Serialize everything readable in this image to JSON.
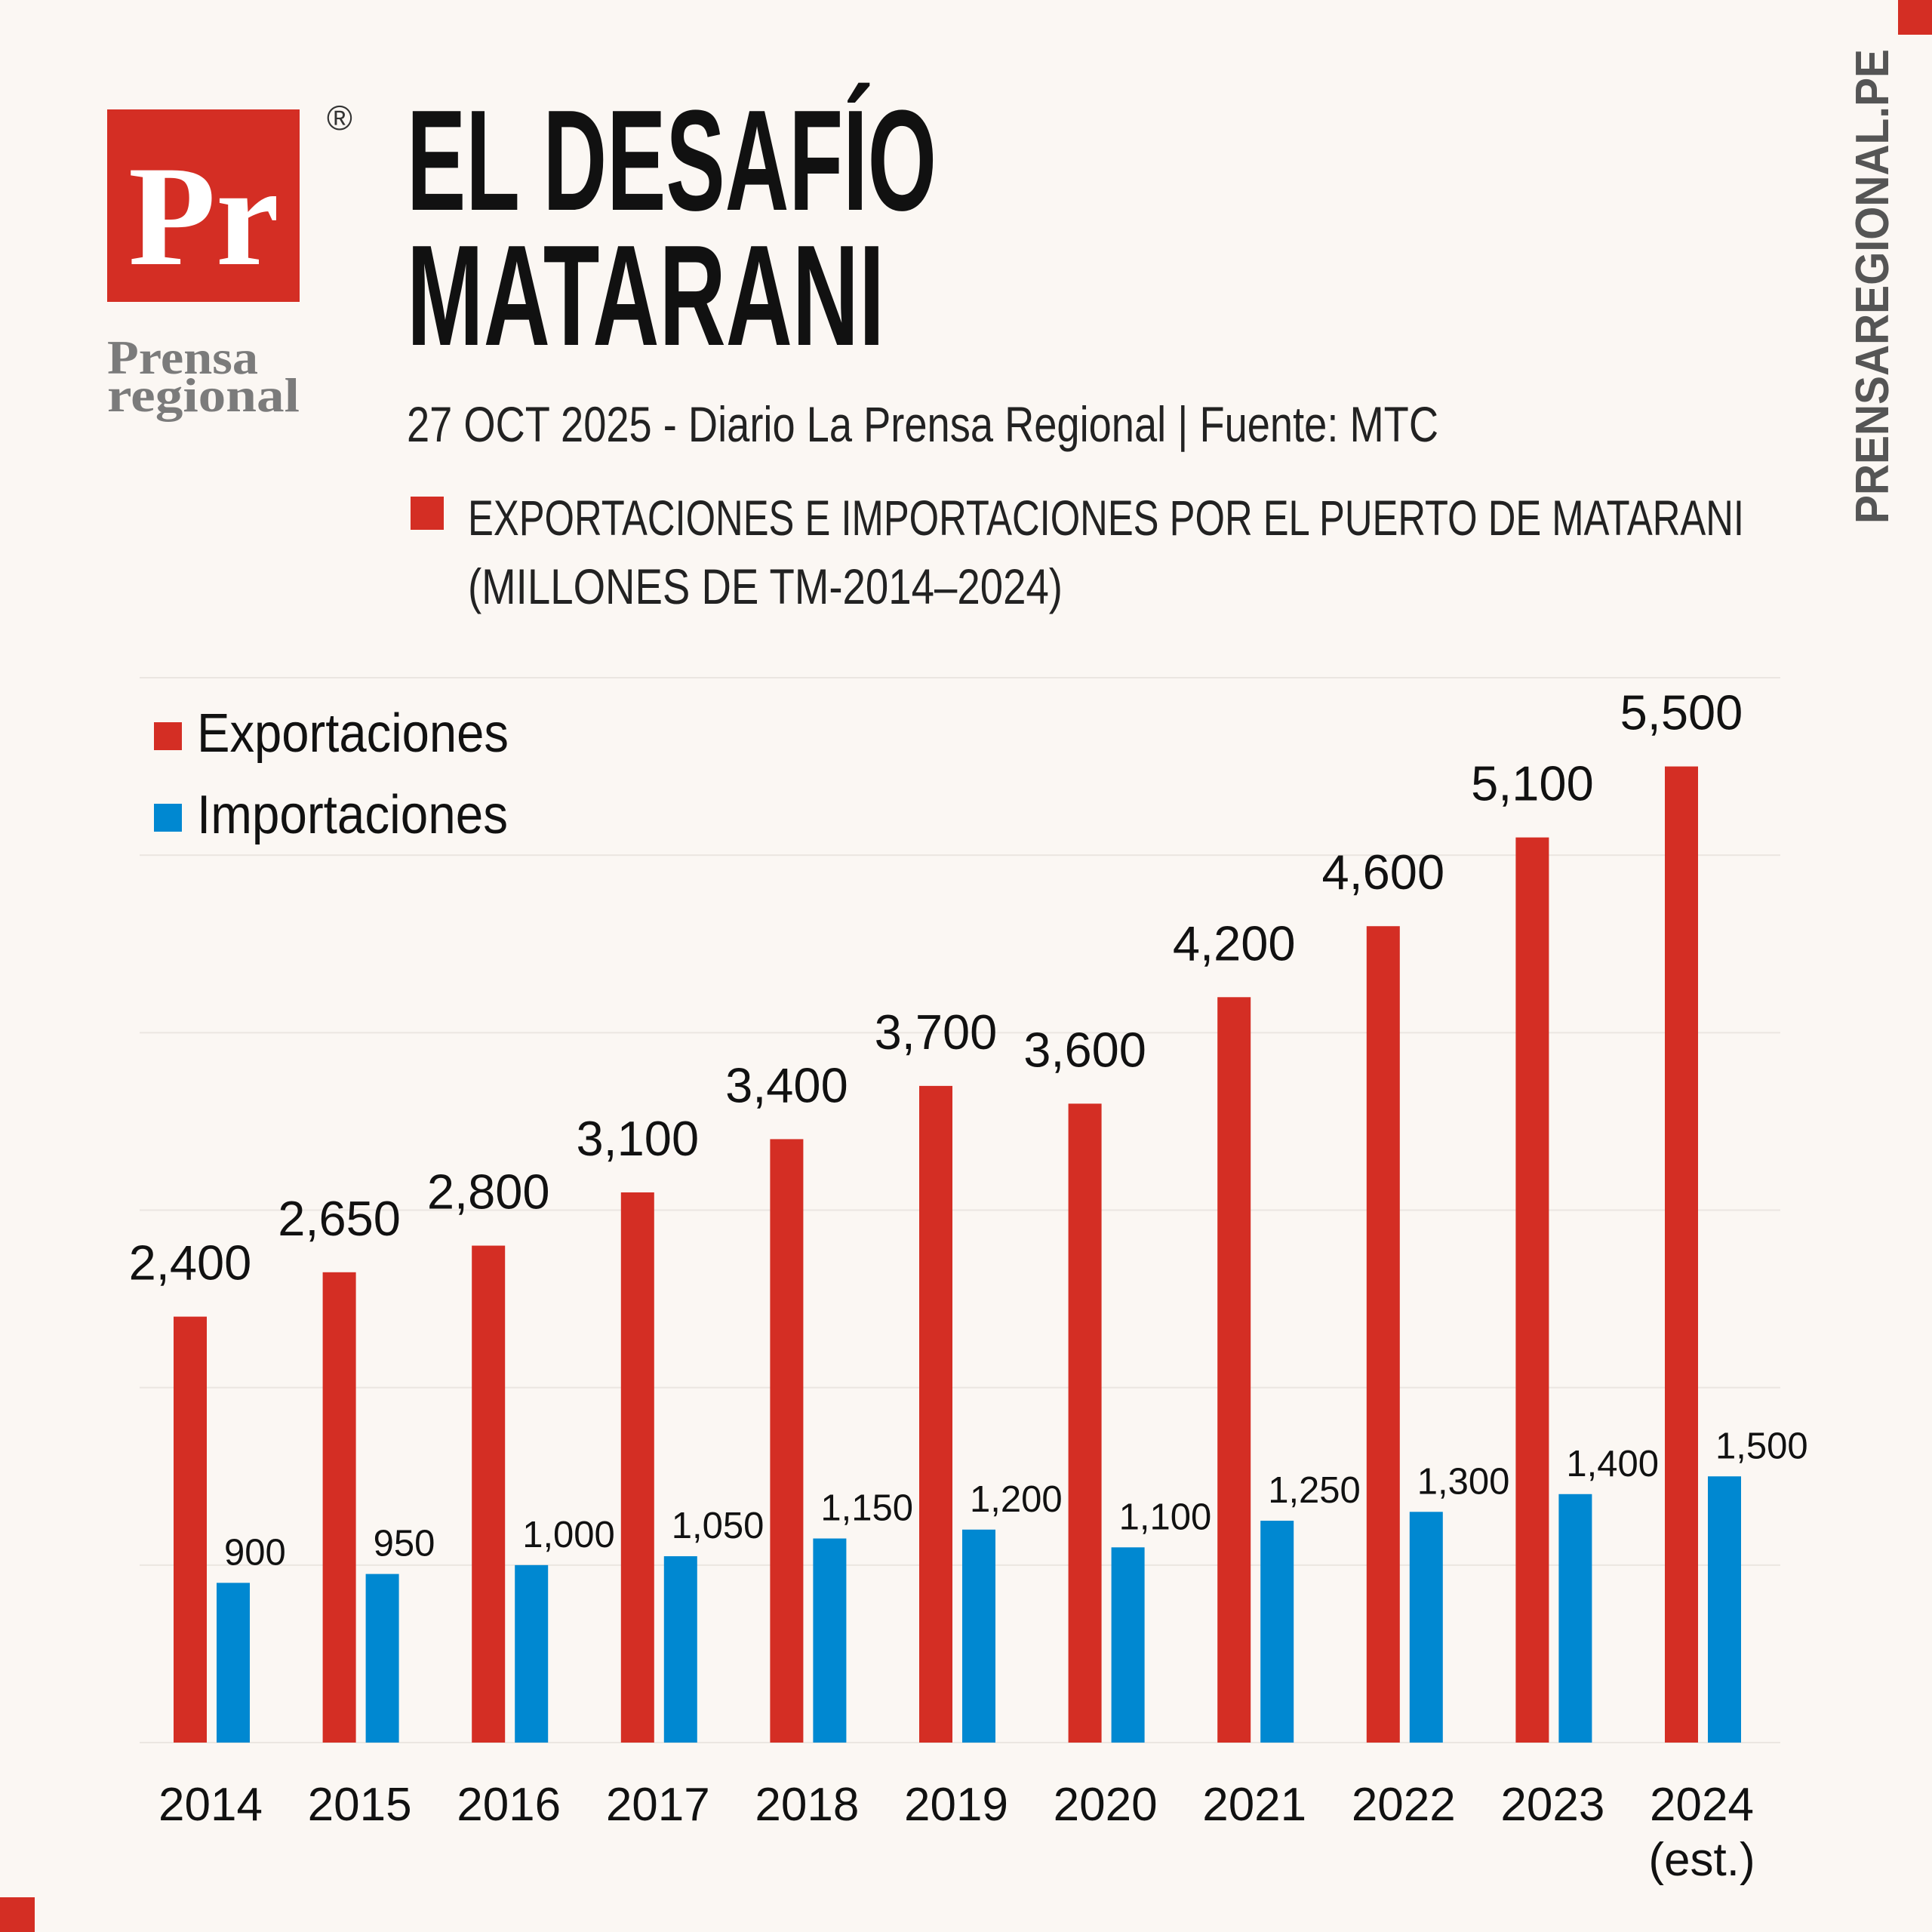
{
  "logo": {
    "mark": "Pr",
    "registered": "®",
    "name_lines": [
      "Prensa",
      "regional"
    ]
  },
  "website": "PRENSAREGIONAL.PE",
  "chart_data": {
    "type": "bar",
    "title_lines": [
      "EL DESAFÍO",
      "MATARANI"
    ],
    "subtitle": "27 OCT 2025 - Diario La Prensa Regional | Fuente: MTC",
    "note_lines": [
      "EXPORTACIONES E IMPORTACIONES POR EL PUERTO DE MATARANI",
      "(MILLONES DE TM-2014–2024)"
    ],
    "note_color": "#d42e24",
    "categories": [
      "2014",
      "2015",
      "2016",
      "2017",
      "2018",
      "2019",
      "2020",
      "2021",
      "2022",
      "2023",
      "2024 (est.)"
    ],
    "series": [
      {
        "name": "Exportaciones",
        "color": "#d42e24",
        "values": [
          2400,
          2650,
          2800,
          3100,
          3400,
          3700,
          3600,
          4200,
          4600,
          5100,
          5500
        ],
        "value_labels": [
          "2,400",
          "2,650",
          "2,800",
          "3,100",
          "3,400",
          "3,700",
          "3,600",
          "4,200",
          "4,600",
          "5,100",
          "5,500"
        ]
      },
      {
        "name": "Importaciones",
        "color": "#0088d1",
        "values": [
          900,
          950,
          1000,
          1050,
          1150,
          1200,
          1100,
          1250,
          1300,
          1400,
          1500
        ],
        "value_labels": [
          "900",
          "950",
          "1,000",
          "1,050",
          "1,150",
          "1,200",
          "1,100",
          "1,250",
          "1,300",
          "1,400",
          "1,500"
        ]
      }
    ],
    "ylim": [
      0,
      6000
    ],
    "yticks": [
      0,
      1000,
      2000,
      3000,
      4000,
      5000,
      6000
    ],
    "grid": true,
    "ytick_labels": false,
    "legend": "top-left"
  }
}
